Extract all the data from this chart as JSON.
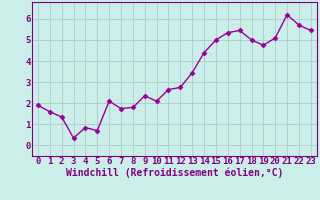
{
  "x": [
    0,
    1,
    2,
    3,
    4,
    5,
    6,
    7,
    8,
    9,
    10,
    11,
    12,
    13,
    14,
    15,
    16,
    17,
    18,
    19,
    20,
    21,
    22,
    23
  ],
  "y": [
    1.9,
    1.6,
    1.35,
    0.35,
    0.85,
    0.7,
    2.1,
    1.75,
    1.8,
    2.35,
    2.1,
    2.65,
    2.75,
    3.45,
    4.4,
    5.0,
    5.35,
    5.45,
    5.0,
    4.75,
    5.1,
    6.2,
    5.7,
    5.45
  ],
  "line_color": "#990099",
  "marker": "D",
  "marker_size": 2.5,
  "background_color": "#cceee8",
  "grid_color": "#aacccc",
  "xlabel": "Windchill (Refroidissement éolien,°C)",
  "xlim": [
    -0.5,
    23.5
  ],
  "ylim": [
    -0.5,
    6.8
  ],
  "yticks": [
    0,
    1,
    2,
    3,
    4,
    5,
    6
  ],
  "xticks": [
    0,
    1,
    2,
    3,
    4,
    5,
    6,
    7,
    8,
    9,
    10,
    11,
    12,
    13,
    14,
    15,
    16,
    17,
    18,
    19,
    20,
    21,
    22,
    23
  ],
  "tick_label_color": "#800080",
  "xlabel_color": "#800080",
  "xlabel_fontsize": 7,
  "tick_fontsize": 6.5,
  "line_width": 1.0,
  "spine_color": "#800080"
}
